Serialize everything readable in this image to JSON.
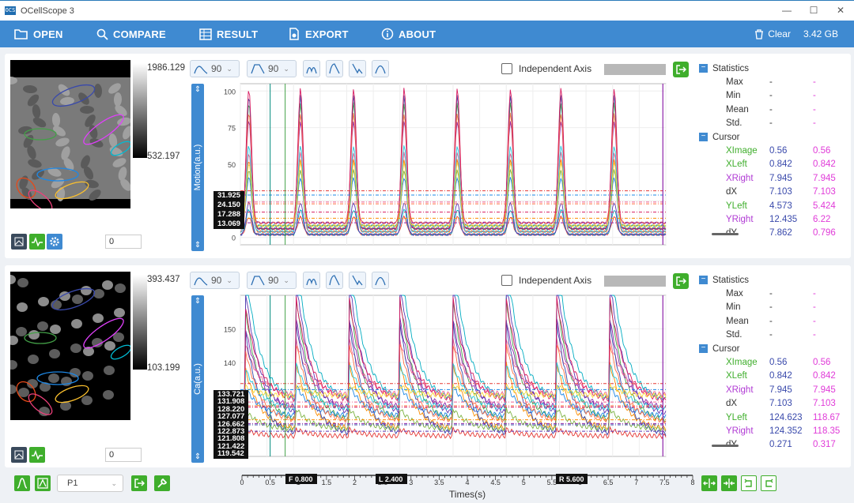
{
  "window": {
    "title": "OCellScope 3",
    "minimize": "—",
    "maximize": "☐",
    "close": "✕"
  },
  "toolbar": {
    "items": [
      {
        "label": "OPEN"
      },
      {
        "label": "COMPARE"
      },
      {
        "label": "RESULT"
      },
      {
        "label": "EXPORT"
      },
      {
        "label": "ABOUT"
      }
    ],
    "clear_label": "Clear",
    "memory": "3.42 GB"
  },
  "panels": [
    {
      "colorbar_max": "1986.129",
      "colorbar_min": "532.197",
      "frame_value": "0",
      "smooth1": "90",
      "smooth2": "90",
      "independent_axis": "Independent Axis",
      "ylabel": "Motion(a.u.)",
      "yticks": [
        "100",
        "75",
        "50",
        "25",
        "0"
      ],
      "cursor_values": [
        "31.925",
        "24.150",
        "17.288",
        "13.069"
      ],
      "stats_title": "Statistics",
      "stats_rows": [
        {
          "k": "Max",
          "a": "-",
          "b": "-"
        },
        {
          "k": "Min",
          "a": "-",
          "b": "-"
        },
        {
          "k": "Mean",
          "a": "-",
          "b": "-"
        },
        {
          "k": "Std.",
          "a": "-",
          "b": "-"
        }
      ],
      "cursor_title": "Cursor",
      "cursor_rows": [
        {
          "k": "XImage",
          "a": "0.56",
          "b": "0.56"
        },
        {
          "k": "XLeft",
          "a": "0.842",
          "b": "0.842"
        },
        {
          "k": "XRight",
          "a": "7.945",
          "b": "7.945"
        },
        {
          "k": "dX",
          "a": "7.103",
          "b": "7.103"
        },
        {
          "k": "YLeft",
          "a": "4.573",
          "b": "5.424"
        },
        {
          "k": "YRight",
          "a": "12.435",
          "b": "6.22"
        },
        {
          "k": "dY",
          "a": "7.862",
          "b": "0.796"
        }
      ]
    },
    {
      "colorbar_max": "393.437",
      "colorbar_min": "103.199",
      "frame_value": "0",
      "smooth1": "90",
      "smooth2": "90",
      "independent_axis": "Independent Axis",
      "ylabel": "Ca(a.u.)",
      "yticks": [
        "150",
        "140"
      ],
      "cursor_values": [
        "133.721",
        "131.908",
        "128.220",
        "127.077",
        "126.662",
        "122.873",
        "121.808",
        "121.422",
        "119.542"
      ],
      "stats_title": "Statistics",
      "stats_rows": [
        {
          "k": "Max",
          "a": "-",
          "b": "-"
        },
        {
          "k": "Min",
          "a": "-",
          "b": "-"
        },
        {
          "k": "Mean",
          "a": "-",
          "b": "-"
        },
        {
          "k": "Std.",
          "a": "-",
          "b": "-"
        }
      ],
      "cursor_title": "Cursor",
      "cursor_rows": [
        {
          "k": "XImage",
          "a": "0.56",
          "b": "0.56"
        },
        {
          "k": "XLeft",
          "a": "0.842",
          "b": "0.842"
        },
        {
          "k": "XRight",
          "a": "7.945",
          "b": "7.945"
        },
        {
          "k": "dX",
          "a": "7.103",
          "b": "7.103"
        },
        {
          "k": "YLeft",
          "a": "124.623",
          "b": "118.67"
        },
        {
          "k": "YRight",
          "a": "124.352",
          "b": "118.35"
        },
        {
          "k": "dY",
          "a": "0.271",
          "b": "0.317"
        }
      ]
    }
  ],
  "bottom": {
    "group_select": "P1",
    "xticks": [
      "0",
      "0.5",
      "1",
      "1.5",
      "2",
      "2.5",
      "3",
      "3.5",
      "4",
      "4.5",
      "5",
      "5.5",
      "6",
      "6.5",
      "7",
      "7.5",
      "8"
    ],
    "xlabel": "Times(s)",
    "cursor_f": "F 0.800",
    "cursor_l": "L 2.400",
    "cursor_r": "R 5.600"
  },
  "colors": {
    "accent": "#3f8ad1",
    "green": "#3fae2c",
    "xleft": "#3fae2c",
    "xright": "#b03ad4",
    "b_col": "#e03ad8"
  }
}
